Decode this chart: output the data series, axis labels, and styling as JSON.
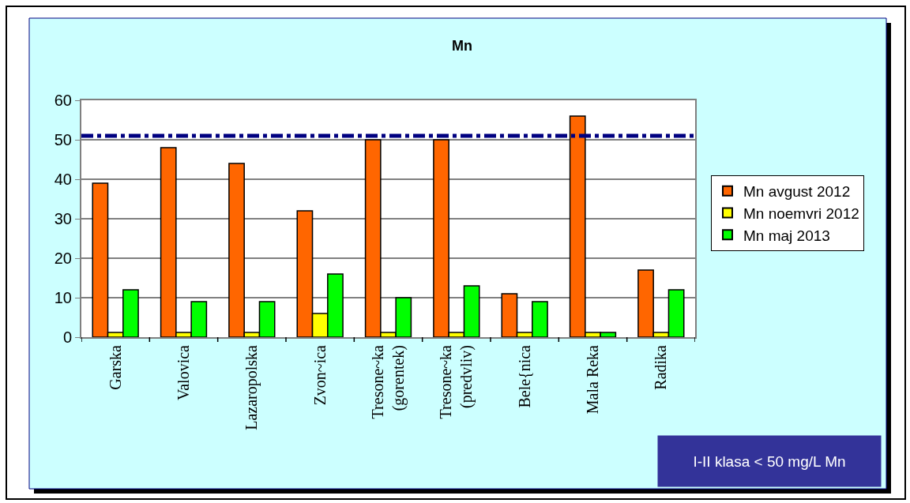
{
  "chart_data": {
    "type": "bar",
    "title": "Mn",
    "categories": [
      "Garska",
      "Valovica",
      "Lazaropolska",
      "Zvon~ica",
      "Tresone~ka\n(gorentek)",
      "Tresone~ka\n(predvliv)",
      "Bele{nica",
      "Mala Reka",
      "Radika"
    ],
    "series": [
      {
        "name": "Mn avgust 2012",
        "color": "#ff6600",
        "values": [
          39,
          48,
          44,
          32,
          50,
          50,
          11,
          56,
          17
        ]
      },
      {
        "name": "Mn noemvri 2012",
        "color": "#ffff00",
        "values": [
          1.2,
          1.2,
          1.2,
          6,
          1.2,
          1.2,
          1.2,
          1.2,
          1.2
        ]
      },
      {
        "name": "Mn maj 2013",
        "color": "#00ff00",
        "values": [
          12,
          9,
          9,
          16,
          10,
          13,
          9,
          1.2,
          12
        ]
      }
    ],
    "ylim": [
      0,
      60
    ],
    "yticks": [
      0,
      10,
      20,
      30,
      40,
      50,
      60
    ],
    "grid": "y",
    "legend": "right",
    "ref_lines": [
      {
        "axis": "y",
        "value": 51,
        "color": "#000080",
        "line_style": "dashed"
      }
    ],
    "annotations": [
      "I-II klasa < 50 mg/L Mn"
    ]
  }
}
